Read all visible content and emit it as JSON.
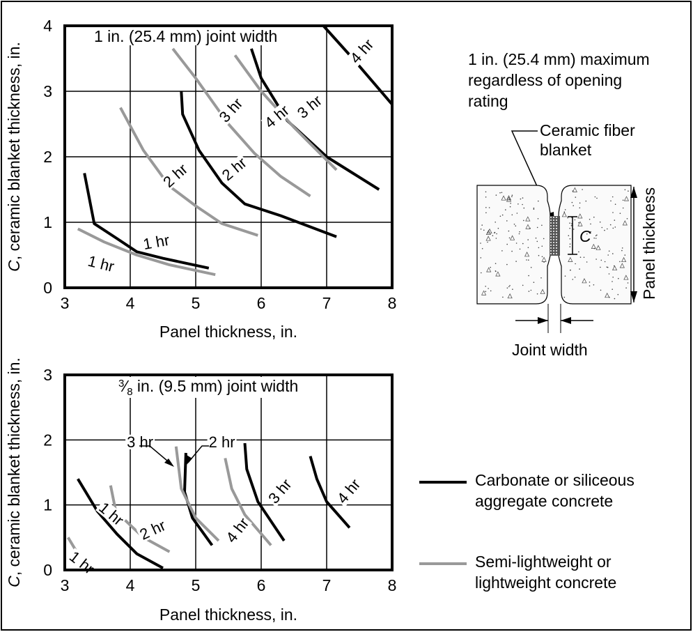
{
  "legend": {
    "black": [
      "Carbonate or siliceous",
      "aggregate concrete"
    ],
    "gray": [
      "Semi-lightweight or",
      "lightweight concrete"
    ]
  },
  "detail": {
    "note": [
      "1 in. (25.4 mm) maximum",
      "regardless of opening",
      "rating"
    ],
    "blanket_label": [
      "Ceramic fiber",
      "blanket"
    ],
    "c_label": "C",
    "panel_thickness_label": "Panel thickness",
    "joint_width_label": "Joint width"
  },
  "colors": {
    "black": "#000000",
    "gray": "#999999"
  },
  "chart_data": [
    {
      "type": "line",
      "title": "1 in. (25.4 mm) joint width",
      "xlabel": "Panel thickness, in.",
      "ylabel_italic": "C",
      "ylabel": ", ceramic blanket thickness, in.",
      "xlim": [
        3,
        8
      ],
      "ylim": [
        0,
        4
      ],
      "xticks": [
        "3",
        "4",
        "5",
        "6",
        "7",
        "8"
      ],
      "yticks": [
        "0",
        "1",
        "2",
        "3",
        "4"
      ],
      "grid": true,
      "series": [
        {
          "name": "1 hr",
          "color": "black",
          "points": [
            [
              3.3,
              1.75
            ],
            [
              3.45,
              0.98
            ],
            [
              3.8,
              0.75
            ],
            [
              4.1,
              0.55
            ],
            [
              4.5,
              0.45
            ],
            [
              5.2,
              0.3
            ]
          ],
          "label": {
            "text": "1 hr",
            "at": [
              4.4,
              0.68
            ],
            "rot": -10
          }
        },
        {
          "name": "1 hr",
          "color": "gray",
          "points": [
            [
              3.2,
              0.9
            ],
            [
              3.6,
              0.7
            ],
            [
              4.1,
              0.5
            ],
            [
              4.6,
              0.35
            ],
            [
              5.3,
              0.2
            ]
          ],
          "label": {
            "text": "1 hr",
            "at": [
              3.55,
              0.35
            ],
            "rot": 14
          }
        },
        {
          "name": "2 hr",
          "color": "black",
          "points": [
            [
              4.78,
              3.0
            ],
            [
              4.8,
              2.65
            ],
            [
              5.05,
              2.1
            ],
            [
              5.4,
              1.6
            ],
            [
              5.75,
              1.28
            ],
            [
              6.3,
              1.1
            ],
            [
              7.15,
              0.78
            ]
          ],
          "label": {
            "text": "2 hr",
            "at": [
              5.6,
              1.8
            ],
            "rot": -40
          }
        },
        {
          "name": "2 hr",
          "color": "gray",
          "points": [
            [
              3.85,
              2.75
            ],
            [
              4.2,
              2.1
            ],
            [
              4.6,
              1.55
            ],
            [
              5.0,
              1.25
            ],
            [
              5.4,
              0.98
            ],
            [
              5.95,
              0.8
            ]
          ],
          "label": {
            "text": "2 hr",
            "at": [
              4.7,
              1.7
            ],
            "rot": -42
          }
        },
        {
          "name": "3 hr",
          "color": "black",
          "points": [
            [
              5.85,
              3.65
            ],
            [
              6.0,
              3.2
            ],
            [
              6.4,
              2.55
            ],
            [
              7.0,
              2.0
            ],
            [
              7.4,
              1.75
            ],
            [
              7.8,
              1.5
            ]
          ],
          "label": {
            "text": "3 hr",
            "at": [
              6.75,
              2.75
            ],
            "rot": -40
          }
        },
        {
          "name": "3 hr",
          "color": "gray",
          "points": [
            [
              4.65,
              3.65
            ],
            [
              5.0,
              3.2
            ],
            [
              5.5,
              2.5
            ],
            [
              5.9,
              2.05
            ],
            [
              6.3,
              1.7
            ],
            [
              6.75,
              1.4
            ]
          ],
          "label": {
            "text": "3 hr",
            "at": [
              5.55,
              2.7
            ],
            "rot": -48
          }
        },
        {
          "name": "4 hr",
          "color": "black",
          "points": [
            [
              6.95,
              4.0
            ],
            [
              7.4,
              3.5
            ],
            [
              8.0,
              2.8
            ]
          ],
          "label": {
            "text": "4 hr",
            "at": [
              7.55,
              3.6
            ],
            "rot": -48
          }
        },
        {
          "name": "4 hr",
          "color": "gray",
          "points": [
            [
              5.6,
              3.55
            ],
            [
              6.0,
              3.0
            ],
            [
              6.5,
              2.45
            ],
            [
              7.15,
              1.8
            ]
          ],
          "label": {
            "text": "4 hr",
            "at": [
              6.25,
              2.6
            ],
            "rot": -40
          }
        }
      ]
    },
    {
      "type": "line",
      "title": "in. (9.5 mm) joint width",
      "title_fraction": [
        "3",
        "8"
      ],
      "xlabel": "Panel thickness, in.",
      "ylabel_italic": "C",
      "ylabel": ", ceramic blanket thickness, in.",
      "xlim": [
        3,
        8
      ],
      "ylim": [
        0,
        3
      ],
      "xticks": [
        "3",
        "4",
        "5",
        "6",
        "7",
        "8"
      ],
      "yticks": [
        "0",
        "1",
        "2",
        "3"
      ],
      "grid": true,
      "series": [
        {
          "name": "1 hr",
          "color": "black",
          "points": [
            [
              3.2,
              1.4
            ],
            [
              3.5,
              0.9
            ],
            [
              3.8,
              0.55
            ],
            [
              4.1,
              0.25
            ],
            [
              4.5,
              0.03
            ]
          ],
          "label": {
            "text": "1 hr",
            "at": [
              3.7,
              0.85
            ],
            "rot": 40
          }
        },
        {
          "name": "1 hr",
          "color": "gray",
          "points": [
            [
              3.05,
              0.5
            ],
            [
              3.2,
              0.25
            ],
            [
              3.4,
              0.0
            ]
          ],
          "label": {
            "text": "1 hr",
            "at": [
              3.25,
              0.1
            ],
            "rot": 38
          }
        },
        {
          "name": "2 hr",
          "color": "black",
          "points": [
            [
              4.85,
              1.8
            ],
            [
              4.83,
              1.2
            ],
            [
              4.95,
              0.8
            ],
            [
              5.25,
              0.38
            ]
          ],
          "label": {
            "text": "2 hr",
            "at": [
              5.4,
              1.95
            ],
            "rot": 0
          }
        },
        {
          "name": "2 hr",
          "color": "gray",
          "points": [
            [
              3.7,
              1.3
            ],
            [
              3.78,
              0.9
            ],
            [
              4.2,
              0.5
            ],
            [
              4.6,
              0.28
            ]
          ],
          "label": {
            "text": "2 hr",
            "at": [
              4.35,
              0.6
            ],
            "rot": -25
          }
        },
        {
          "name": "3 hr",
          "color": "black",
          "points": [
            [
              5.75,
              1.95
            ],
            [
              5.78,
              1.55
            ],
            [
              5.95,
              1.05
            ],
            [
              6.35,
              0.45
            ]
          ],
          "label": {
            "text": "3 hr",
            "at": [
              6.3,
              1.2
            ],
            "rot": -50
          }
        },
        {
          "name": "3 hr",
          "color": "gray",
          "points": [
            [
              4.7,
              1.9
            ],
            [
              4.78,
              1.25
            ],
            [
              5.0,
              0.8
            ],
            [
              5.35,
              0.45
            ]
          ],
          "label": {
            "text": "3 hr",
            "at": [
              4.15,
              1.95
            ],
            "rot": 0
          }
        },
        {
          "name": "4 hr",
          "color": "black",
          "points": [
            [
              6.75,
              1.75
            ],
            [
              6.85,
              1.4
            ],
            [
              7.0,
              1.05
            ],
            [
              7.35,
              0.65
            ]
          ],
          "label": {
            "text": "4 hr",
            "at": [
              7.35,
              1.2
            ],
            "rot": -50
          }
        },
        {
          "name": "4 hr",
          "color": "gray",
          "points": [
            [
              5.45,
              1.72
            ],
            [
              5.55,
              1.25
            ],
            [
              5.75,
              0.85
            ],
            [
              6.15,
              0.38
            ]
          ],
          "label": {
            "text": "4 hr",
            "at": [
              5.65,
              0.6
            ],
            "rot": -52
          }
        }
      ]
    }
  ]
}
